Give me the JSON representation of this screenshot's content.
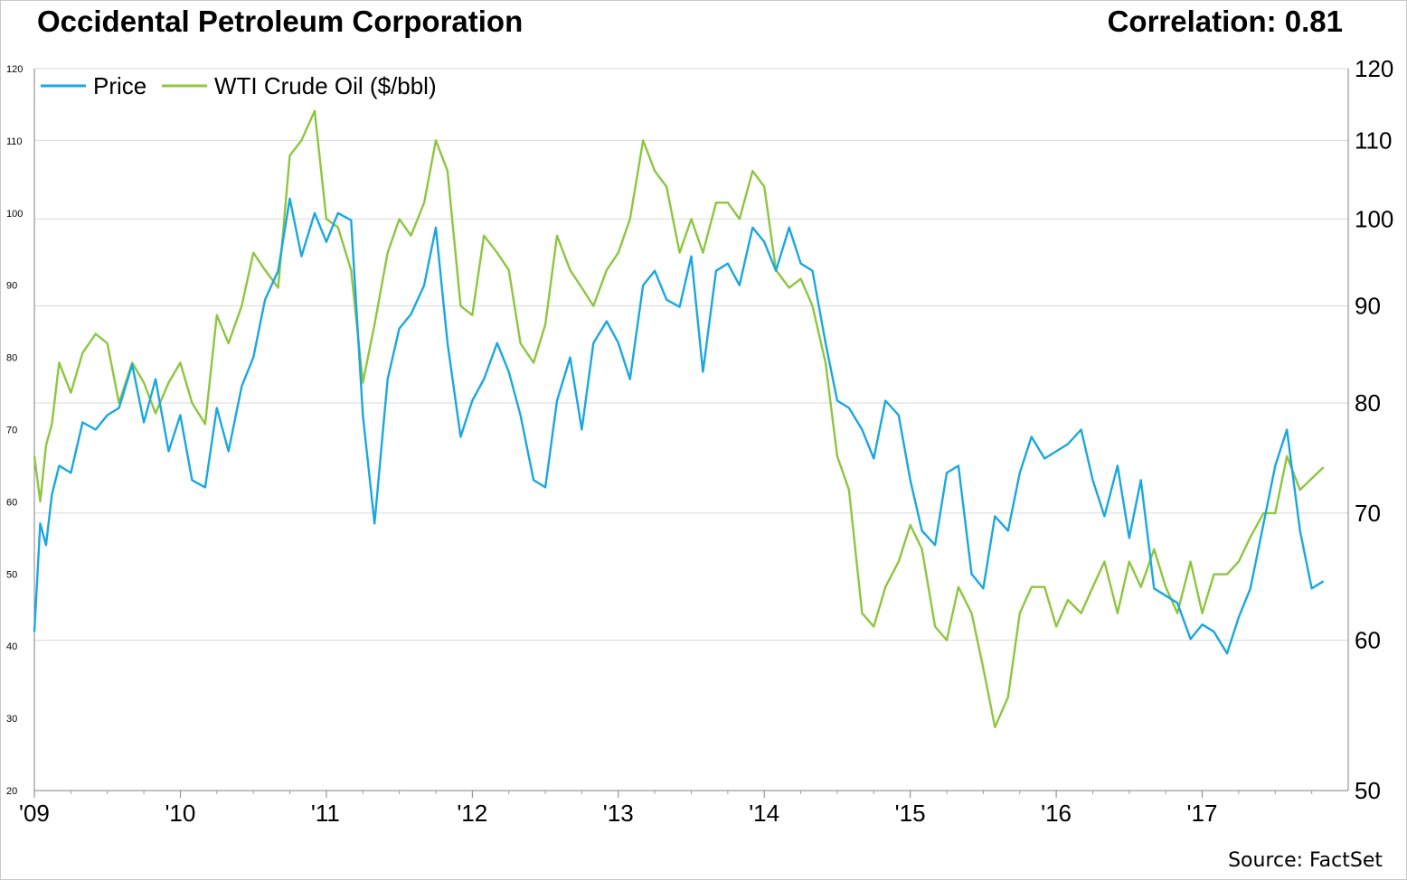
{
  "header": {
    "title": "Occidental Petroleum Corporation",
    "correlation": "Correlation: 0.81"
  },
  "footer": {
    "source": "Source: FactSet"
  },
  "colors": {
    "price": "#1aa7e0",
    "wti": "#8dc63f",
    "grid": "#d9d9d9"
  },
  "chart_data": {
    "type": "line",
    "title": "Occidental Petroleum Corporation",
    "x_ticks": [
      "'09",
      "'10",
      "'11",
      "'12",
      "'13",
      "'14",
      "'15",
      "'16",
      "'17"
    ],
    "x_range": [
      2009.0,
      2018.0
    ],
    "y_left": {
      "ticks": [
        20,
        30,
        40,
        50,
        60,
        70,
        80,
        90,
        100,
        110,
        120
      ],
      "ylim": [
        20,
        120
      ],
      "scale": "linear"
    },
    "y_right": {
      "ticks": [
        50,
        60,
        70,
        80,
        90,
        100,
        110,
        120
      ],
      "ylim": [
        50,
        120
      ],
      "scale": "log"
    },
    "grid": true,
    "legend": {
      "placement": "top-left"
    },
    "series": [
      {
        "name": "Price",
        "axis": "left",
        "color": "#1aa7e0",
        "x": [
          2009.0,
          2009.04,
          2009.08,
          2009.12,
          2009.17,
          2009.25,
          2009.33,
          2009.42,
          2009.5,
          2009.58,
          2009.67,
          2009.75,
          2009.83,
          2009.92,
          2010.0,
          2010.08,
          2010.17,
          2010.25,
          2010.33,
          2010.42,
          2010.5,
          2010.58,
          2010.67,
          2010.75,
          2010.83,
          2010.92,
          2011.0,
          2011.08,
          2011.17,
          2011.25,
          2011.33,
          2011.42,
          2011.5,
          2011.58,
          2011.67,
          2011.75,
          2011.83,
          2011.92,
          2012.0,
          2012.08,
          2012.17,
          2012.25,
          2012.33,
          2012.42,
          2012.5,
          2012.58,
          2012.67,
          2012.75,
          2012.83,
          2012.92,
          2013.0,
          2013.08,
          2013.17,
          2013.25,
          2013.33,
          2013.42,
          2013.5,
          2013.58,
          2013.67,
          2013.75,
          2013.83,
          2013.92,
          2014.0,
          2014.08,
          2014.17,
          2014.25,
          2014.33,
          2014.42,
          2014.5,
          2014.58,
          2014.67,
          2014.75,
          2014.83,
          2014.92,
          2015.0,
          2015.08,
          2015.17,
          2015.25,
          2015.33,
          2015.42,
          2015.5,
          2015.58,
          2015.67,
          2015.75,
          2015.83,
          2015.92,
          2016.0,
          2016.08,
          2016.17,
          2016.25,
          2016.33,
          2016.42,
          2016.5,
          2016.58,
          2016.67,
          2016.75,
          2016.83,
          2016.92,
          2017.0,
          2017.08,
          2017.17,
          2017.25,
          2017.33,
          2017.42,
          2017.5,
          2017.58,
          2017.67,
          2017.75,
          2017.83
        ],
        "y": [
          42,
          57,
          54,
          61,
          65,
          64,
          71,
          70,
          72,
          73,
          79,
          71,
          77,
          67,
          72,
          63,
          62,
          73,
          67,
          76,
          80,
          88,
          92,
          102,
          94,
          100,
          96,
          100,
          99,
          72,
          57,
          77,
          84,
          86,
          90,
          98,
          82,
          69,
          74,
          77,
          82,
          78,
          72,
          63,
          62,
          74,
          80,
          70,
          82,
          85,
          82,
          77,
          90,
          92,
          88,
          87,
          94,
          78,
          92,
          93,
          90,
          98,
          96,
          92,
          98,
          93,
          92,
          82,
          74,
          73,
          70,
          66,
          74,
          72,
          63,
          56,
          54,
          64,
          65,
          50,
          48,
          58,
          56,
          64,
          69,
          66,
          67,
          68,
          70,
          63,
          58,
          65,
          55,
          63,
          48,
          47,
          46,
          41,
          43,
          42,
          39,
          44,
          48,
          57,
          65,
          70,
          56,
          48,
          49
        ]
      },
      {
        "name": "WTI Crude Oil ($/bbl)",
        "axis": "right",
        "color": "#8dc63f",
        "x": [
          2009.0,
          2009.04,
          2009.08,
          2009.12,
          2009.17,
          2009.25,
          2009.33,
          2009.42,
          2009.5,
          2009.58,
          2009.67,
          2009.75,
          2009.83,
          2009.92,
          2010.0,
          2010.08,
          2010.17,
          2010.25,
          2010.33,
          2010.42,
          2010.5,
          2010.58,
          2010.67,
          2010.75,
          2010.83,
          2010.92,
          2011.0,
          2011.08,
          2011.17,
          2011.25,
          2011.33,
          2011.42,
          2011.5,
          2011.58,
          2011.67,
          2011.75,
          2011.83,
          2011.92,
          2012.0,
          2012.08,
          2012.17,
          2012.25,
          2012.33,
          2012.42,
          2012.5,
          2012.58,
          2012.67,
          2012.75,
          2012.83,
          2012.92,
          2013.0,
          2013.08,
          2013.17,
          2013.25,
          2013.33,
          2013.42,
          2013.5,
          2013.58,
          2013.67,
          2013.75,
          2013.83,
          2013.92,
          2014.0,
          2014.08,
          2014.17,
          2014.25,
          2014.33,
          2014.42,
          2014.5,
          2014.58,
          2014.67,
          2014.75,
          2014.83,
          2014.92,
          2015.0,
          2015.08,
          2015.17,
          2015.25,
          2015.33,
          2015.42,
          2015.5,
          2015.58,
          2015.67,
          2015.75,
          2015.83,
          2015.92,
          2016.0,
          2016.08,
          2016.17,
          2016.25,
          2016.33,
          2016.42,
          2016.5,
          2016.58,
          2016.67,
          2016.75,
          2016.83,
          2016.92,
          2017.0,
          2017.08,
          2017.17,
          2017.25,
          2017.33,
          2017.42,
          2017.5,
          2017.58,
          2017.67,
          2017.75,
          2017.83
        ],
        "y": [
          75,
          71,
          76,
          78,
          84,
          81,
          85,
          87,
          86,
          80,
          84,
          82,
          79,
          82,
          84,
          80,
          78,
          89,
          86,
          90,
          96,
          94,
          92,
          108,
          110,
          114,
          100,
          99,
          94,
          82,
          88,
          96,
          100,
          98,
          102,
          110,
          106,
          90,
          89,
          98,
          96,
          94,
          86,
          84,
          88,
          98,
          94,
          92,
          90,
          94,
          96,
          100,
          110,
          106,
          104,
          96,
          100,
          96,
          102,
          102,
          100,
          106,
          104,
          94,
          92,
          93,
          90,
          84,
          75,
          72,
          62,
          61,
          64,
          66,
          69,
          67,
          61,
          60,
          64,
          62,
          58,
          54,
          56,
          62,
          64,
          64,
          61,
          63,
          62,
          64,
          66,
          62,
          66,
          64,
          67,
          64,
          62,
          66,
          62,
          65,
          65,
          66,
          68,
          70,
          70,
          75,
          72,
          73,
          74
        ]
      }
    ]
  }
}
